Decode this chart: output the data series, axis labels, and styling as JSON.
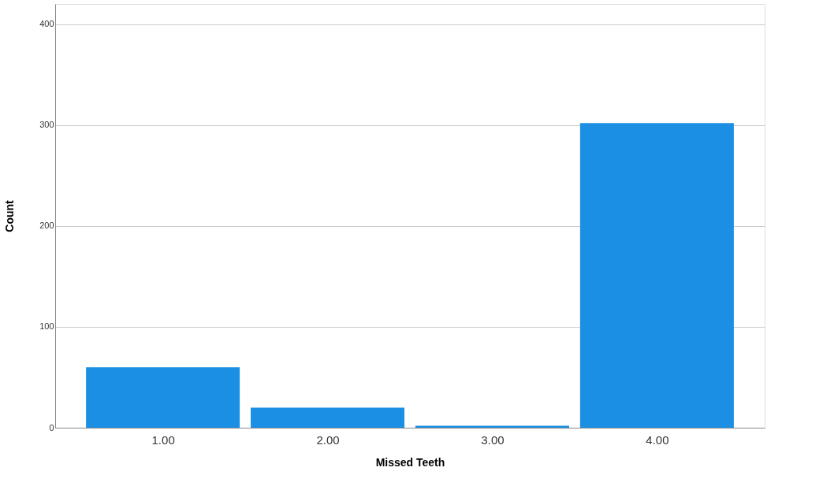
{
  "chart_data": {
    "type": "bar",
    "xlabel": "Missed Teeth",
    "ylabel": "Count",
    "categories": [
      "1.00",
      "2.00",
      "3.00",
      "4.00"
    ],
    "values": [
      60,
      20,
      2,
      302
    ],
    "color": "#1a8fe3",
    "ylim": [
      0,
      420
    ],
    "yticks": [
      0,
      100,
      200,
      300,
      400
    ],
    "grid": "y"
  }
}
